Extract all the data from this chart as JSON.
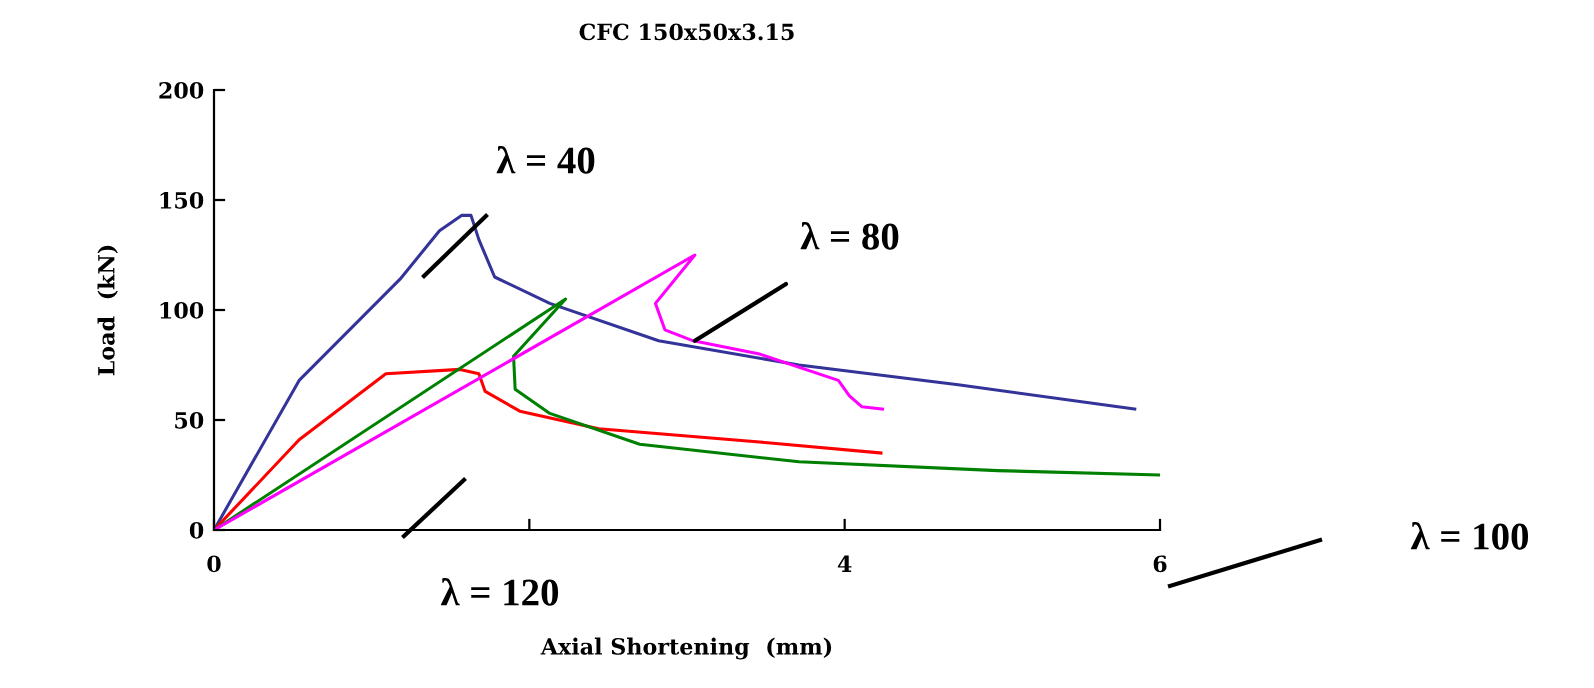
{
  "chart_data": {
    "type": "line",
    "title": "CFC 150x50x3.15",
    "xlabel": "Axial Shortening  (mm)",
    "ylabel": "Load  (kN)",
    "xlim": [
      0,
      6
    ],
    "xticks": [
      0,
      {
        "value": 2,
        "label": null
      },
      4,
      6
    ],
    "ylim": [
      0,
      200
    ],
    "yticks": [
      0,
      50,
      100,
      150,
      200
    ],
    "grid": false,
    "legend": false,
    "marker": "none",
    "line_style": "solid",
    "series": [
      {
        "color": "#333399",
        "x": [
          0,
          0.54,
          1.18,
          1.43,
          1.57,
          1.63,
          1.68,
          1.78,
          2.13,
          2.82,
          3.71,
          4.72,
          5.84
        ],
        "values": [
          0,
          68,
          114,
          136,
          143,
          143,
          132,
          115,
          103,
          86,
          75,
          66,
          55
        ]
      },
      {
        "color": "#ff0000",
        "x": [
          0,
          0.54,
          1.09,
          1.56,
          1.68,
          1.72,
          1.94,
          2.44,
          3.46,
          4.23
        ],
        "values": [
          0,
          41,
          71,
          73,
          71,
          63,
          54,
          46,
          40,
          35
        ]
      },
      {
        "color": "#008000",
        "x": [
          0,
          2.23,
          1.9,
          1.91,
          2.13,
          2.7,
          3.71,
          4.97,
          6.0
        ],
        "values": [
          0,
          105,
          79,
          64,
          53,
          39,
          31,
          27,
          25
        ]
      },
      {
        "color": "#ff00ff",
        "x": [
          0,
          3.05,
          2.8,
          2.86,
          3.04,
          3.46,
          3.96,
          4.03,
          4.11,
          4.24
        ],
        "values": [
          0,
          125,
          103,
          91,
          86,
          80,
          68,
          61,
          56,
          55
        ]
      }
    ],
    "annotations": [
      "λ = 40",
      {
        "text": "λ = 80",
        "x": 3.05,
        "y": 86
      },
      "λ = 120",
      "λ = 100"
    ]
  }
}
